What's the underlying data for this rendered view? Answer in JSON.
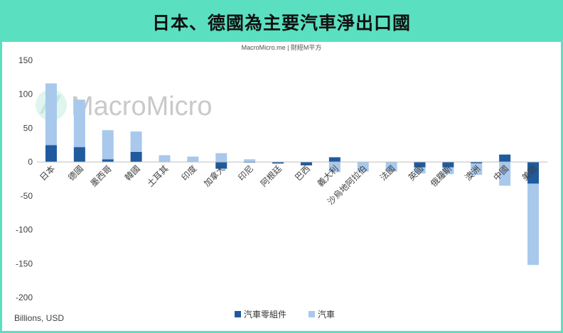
{
  "header": {
    "title": "日本、德國為主要汽車淨出口國"
  },
  "source": "MacroMicro.me | 財經M平方",
  "watermark": "MacroMicro",
  "unit_label": "Billions, USD",
  "colors": {
    "banner": "#5ae0c0",
    "parts": "#1f5a9e",
    "cars": "#a8c8ec"
  },
  "chart_data": {
    "type": "bar",
    "stacked": true,
    "categories": [
      "日本",
      "德國",
      "墨西哥",
      "韓國",
      "土耳其",
      "印度",
      "加拿大",
      "印尼",
      "阿根廷",
      "巴西",
      "義大利",
      "沙烏地阿拉伯",
      "法國",
      "英國",
      "俄羅斯",
      "澳洲",
      "中國",
      "美國"
    ],
    "series": [
      {
        "name": "汽車零組件",
        "values": [
          25,
          22,
          4,
          15,
          0,
          0,
          -10,
          -1,
          -2,
          -5,
          7,
          0,
          0,
          -8,
          -8,
          -2,
          11,
          -32
        ]
      },
      {
        "name": "汽車",
        "values": [
          91,
          70,
          43,
          30,
          10,
          8,
          13,
          4,
          -1,
          0,
          -15,
          -14,
          -14,
          -9,
          -10,
          -17,
          -35,
          -120
        ]
      }
    ],
    "ylim": [
      -200,
      150
    ],
    "yticks": [
      150,
      100,
      50,
      0,
      -50,
      -100,
      -150,
      -200
    ],
    "ylabel": "Billions, USD",
    "grid": false,
    "legend": "bottom"
  }
}
